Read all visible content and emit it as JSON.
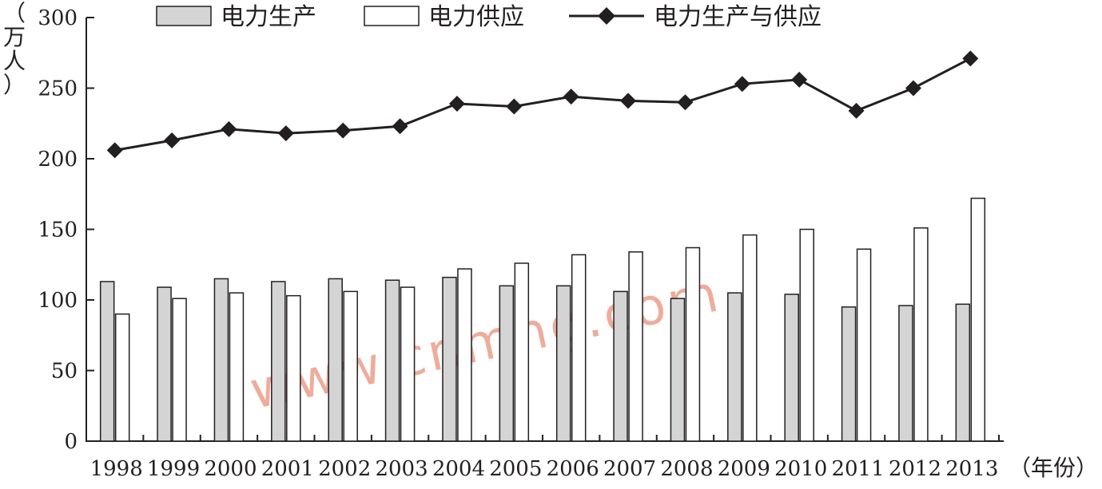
{
  "chart_data": {
    "type": "bar",
    "categories": [
      "1998",
      "1999",
      "2000",
      "2001",
      "2002",
      "2003",
      "2004",
      "2005",
      "2006",
      "2007",
      "2008",
      "2009",
      "2010",
      "2011",
      "2012",
      "2013"
    ],
    "series": [
      {
        "name": "电力生产",
        "type": "bar",
        "color": "#d4d4d4",
        "values": [
          113,
          109,
          115,
          113,
          115,
          114,
          116,
          110,
          110,
          106,
          101,
          105,
          104,
          95,
          96,
          97
        ]
      },
      {
        "name": "电力供应",
        "type": "bar",
        "color": "#ffffff",
        "values": [
          90,
          101,
          105,
          103,
          106,
          109,
          122,
          126,
          132,
          134,
          137,
          146,
          150,
          136,
          151,
          172
        ]
      },
      {
        "name": "电力生产与供应",
        "type": "line",
        "marker": "diamond",
        "color": "#231f20",
        "values": [
          206,
          213,
          221,
          218,
          220,
          223,
          239,
          237,
          244,
          241,
          240,
          253,
          256,
          234,
          250,
          271
        ]
      }
    ],
    "ylabel": "（万人）",
    "xlabel": "（年份）",
    "ylim": [
      0,
      300
    ],
    "yticks": [
      "0",
      "50",
      "100",
      "150",
      "200",
      "250",
      "300"
    ],
    "legend_position": "top",
    "grid": false
  },
  "watermark": "www.cnmhg.com"
}
